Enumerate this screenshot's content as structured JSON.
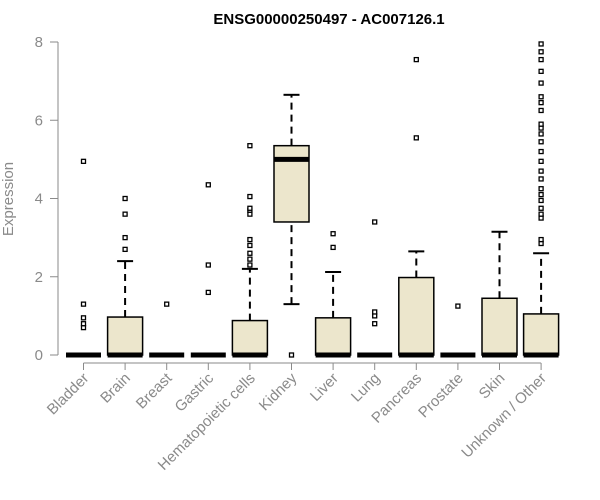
{
  "chart_data": {
    "type": "box",
    "title": "ENSG00000250497 - AC007126.1",
    "ylabel": "Expression",
    "xlabel": "",
    "ylim": [
      0,
      8
    ],
    "yticks": [
      0,
      2,
      4,
      6,
      8
    ],
    "grid": false,
    "box_color": "#ece6cc",
    "categories": [
      "Bladder",
      "Brain",
      "Breast",
      "Gastric",
      "Hematopoietic cells",
      "Kidney",
      "Liver",
      "Lung",
      "Pancreas",
      "Prostate",
      "Skin",
      "Unknown / Other"
    ],
    "boxes": [
      {
        "q1": 0,
        "median": 0,
        "q3": 0,
        "whisker_low": 0,
        "whisker_high": 0,
        "outliers": [
          0.7,
          0.8,
          0.95,
          1.3,
          4.95
        ]
      },
      {
        "q1": 0,
        "median": 0,
        "q3": 0.97,
        "whisker_low": 0,
        "whisker_high": 2.4,
        "outliers": [
          2.7,
          3.0,
          3.6,
          4.0
        ]
      },
      {
        "q1": 0,
        "median": 0,
        "q3": 0,
        "whisker_low": 0,
        "whisker_high": 0,
        "outliers": [
          1.3
        ]
      },
      {
        "q1": 0,
        "median": 0,
        "q3": 0,
        "whisker_low": 0,
        "whisker_high": 0,
        "outliers": [
          1.6,
          2.3,
          4.35
        ]
      },
      {
        "q1": 0,
        "median": 0,
        "q3": 0.88,
        "whisker_low": 0,
        "whisker_high": 2.2,
        "outliers": [
          2.3,
          2.45,
          2.6,
          2.8,
          2.95,
          3.6,
          3.7,
          3.75,
          4.05,
          5.35
        ]
      },
      {
        "q1": 3.4,
        "median": 5.0,
        "q3": 5.35,
        "whisker_low": 1.3,
        "whisker_high": 6.65,
        "outliers": [
          0
        ]
      },
      {
        "q1": 0,
        "median": 0,
        "q3": 0.95,
        "whisker_low": 0,
        "whisker_high": 2.12,
        "outliers": [
          2.75,
          3.1
        ]
      },
      {
        "q1": 0,
        "median": 0,
        "q3": 0,
        "whisker_low": 0,
        "whisker_high": 0,
        "outliers": [
          0.8,
          1.0,
          1.1,
          3.4
        ]
      },
      {
        "q1": 0,
        "median": 0,
        "q3": 1.98,
        "whisker_low": 0,
        "whisker_high": 2.65,
        "outliers": [
          5.55,
          7.55
        ]
      },
      {
        "q1": 0,
        "median": 0,
        "q3": 0,
        "whisker_low": 0,
        "whisker_high": 0,
        "outliers": [
          1.25
        ]
      },
      {
        "q1": 0,
        "median": 0,
        "q3": 1.45,
        "whisker_low": 0,
        "whisker_high": 3.15,
        "outliers": []
      },
      {
        "q1": 0,
        "median": 0,
        "q3": 1.05,
        "whisker_low": 0,
        "whisker_high": 2.6,
        "outliers": [
          2.85,
          2.95,
          3.5,
          3.6,
          3.75,
          3.95,
          4.1,
          4.25,
          4.5,
          4.7,
          4.95,
          5.2,
          5.45,
          5.65,
          5.8,
          5.9,
          6.25,
          6.45,
          6.6,
          6.95,
          7.25,
          7.55,
          7.75,
          7.95
        ]
      }
    ]
  }
}
